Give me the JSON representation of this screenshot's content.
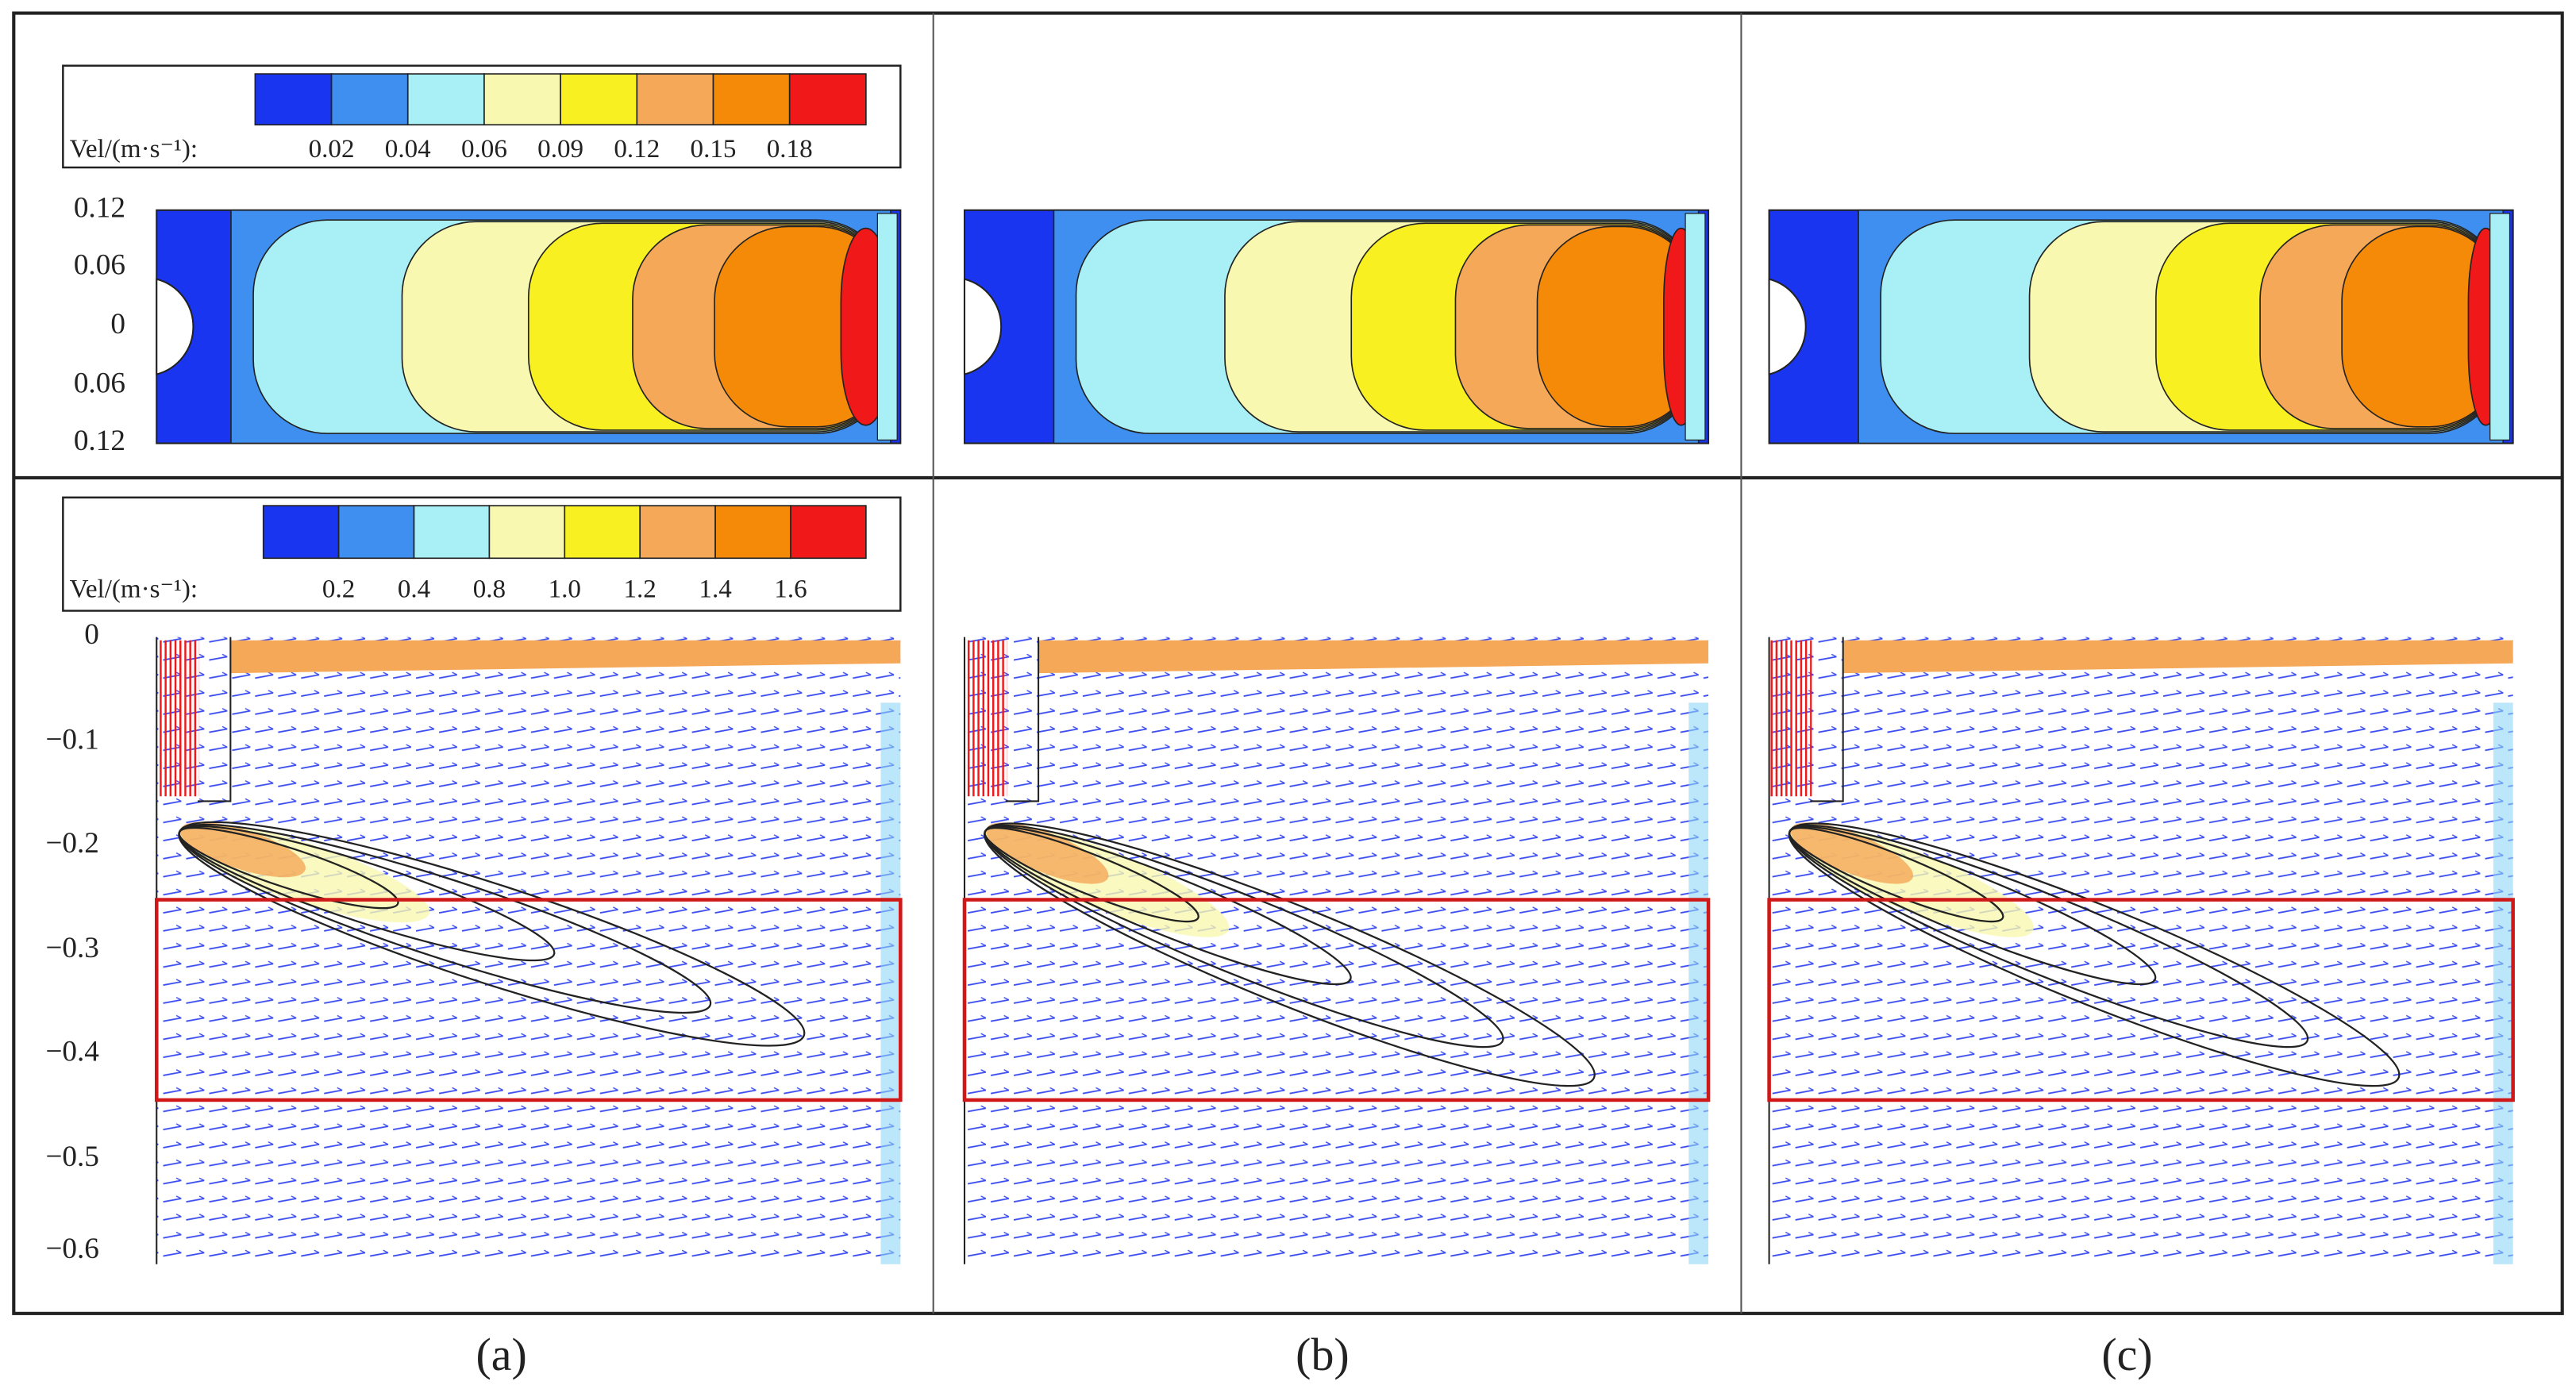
{
  "top_colorbar": {
    "label": "Vel/(m·s⁻¹):",
    "ticks": [
      "0.02",
      "0.04",
      "0.06",
      "0.09",
      "0.12",
      "0.15",
      "0.18"
    ],
    "colors": [
      "#1a35f0",
      "#3f8ff0",
      "#a8f0f5",
      "#f8f8b0",
      "#f8f020",
      "#f5a858",
      "#f58a08",
      "#f01818"
    ]
  },
  "top_axis_ticks": [
    "0.12",
    "0.06",
    "0",
    "0.06",
    "0.12"
  ],
  "bottom_colorbar": {
    "label": "Vel/(m·s⁻¹):",
    "ticks": [
      "0.2",
      "0.4",
      "0.8",
      "1.0",
      "1.2",
      "1.4",
      "1.6"
    ],
    "colors": [
      "#1a35f0",
      "#3f8ff0",
      "#a8f0f5",
      "#f8f8b0",
      "#f8f020",
      "#f5a858",
      "#f58a08",
      "#f01818"
    ]
  },
  "bottom_axis_ticks": [
    "0",
    "−0.1",
    "−0.2",
    "−0.3",
    "−0.4",
    "−0.5",
    "−0.6"
  ],
  "panel_labels": [
    "(a)",
    "(b)",
    "(c)"
  ]
}
